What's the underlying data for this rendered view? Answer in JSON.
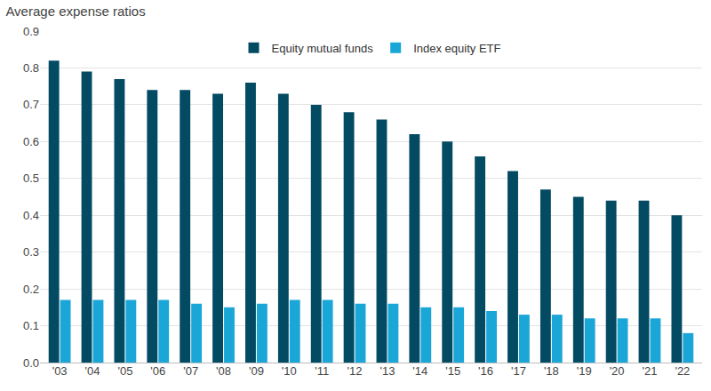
{
  "chart_data": {
    "type": "bar",
    "title": "Average expense ratios",
    "categories": [
      "'03",
      "'04",
      "'05",
      "'06",
      "'07",
      "'08",
      "'09",
      "'10",
      "'11",
      "'12",
      "'13",
      "'14",
      "'15",
      "'16",
      "'17",
      "'18",
      "'19",
      "'20",
      "'21",
      "'22"
    ],
    "series": [
      {
        "name": "Equity mutual funds",
        "color": "#034a63",
        "values": [
          0.82,
          0.79,
          0.77,
          0.74,
          0.74,
          0.73,
          0.76,
          0.73,
          0.7,
          0.68,
          0.66,
          0.62,
          0.6,
          0.56,
          0.52,
          0.47,
          0.45,
          0.44,
          0.44,
          0.4
        ]
      },
      {
        "name": "Index equity ETF",
        "color": "#1ba6d8",
        "values": [
          0.17,
          0.17,
          0.17,
          0.17,
          0.16,
          0.15,
          0.16,
          0.17,
          0.17,
          0.16,
          0.16,
          0.15,
          0.15,
          0.14,
          0.13,
          0.13,
          0.12,
          0.12,
          0.12,
          0.08
        ]
      }
    ],
    "ylim": [
      0,
      0.9
    ],
    "yticks": [
      {
        "value": 0,
        "label": "0.0"
      },
      0.1,
      0.2,
      0.3,
      0.4,
      0.5,
      0.6,
      0.7,
      0.8,
      0.9
    ],
    "grid": true,
    "legend": "top"
  }
}
